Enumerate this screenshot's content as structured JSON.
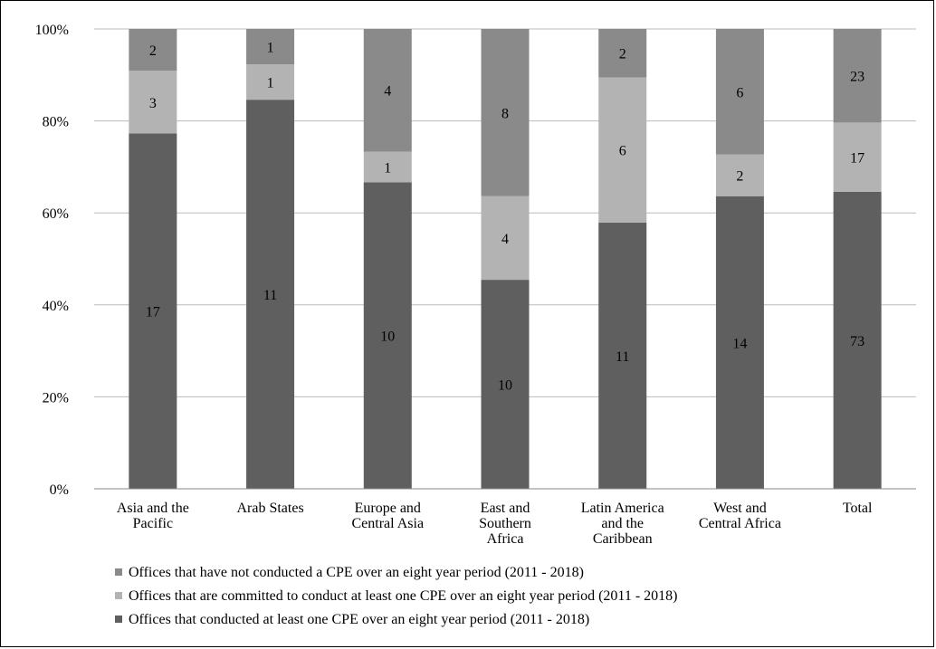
{
  "chart_data": {
    "type": "bar",
    "stacked": true,
    "normalized": true,
    "categories": [
      [
        "Asia and the",
        "Pacific"
      ],
      [
        "Arab States"
      ],
      [
        "Europe and",
        "Central Asia"
      ],
      [
        "East and",
        "Southern",
        "Africa"
      ],
      [
        "Latin America",
        "and the",
        "Caribbean"
      ],
      [
        "West and",
        "Central Africa"
      ],
      [
        "Total"
      ]
    ],
    "series": [
      {
        "name": "Offices that conducted at least one CPE over an eight year period  (2011 - 2018)",
        "values": [
          17,
          11,
          10,
          10,
          11,
          14,
          73
        ],
        "color": "#5f5f5f"
      },
      {
        "name": "Offices that are committed to conduct at least one CPE over an eight year period  (2011 - 2018)",
        "values": [
          3,
          1,
          1,
          4,
          6,
          2,
          17
        ],
        "color": "#b3b3b3"
      },
      {
        "name": "Offices that have not conducted a CPE  over an eight year period (2011 - 2018)",
        "values": [
          2,
          1,
          4,
          8,
          2,
          6,
          23
        ],
        "color": "#8a8a8a"
      }
    ],
    "yticks": [
      "0%",
      "20%",
      "40%",
      "60%",
      "80%",
      "100%"
    ],
    "ylim": [
      0,
      100
    ],
    "grid": true,
    "legend_position": "bottom",
    "legend_order": [
      2,
      1,
      0
    ]
  }
}
